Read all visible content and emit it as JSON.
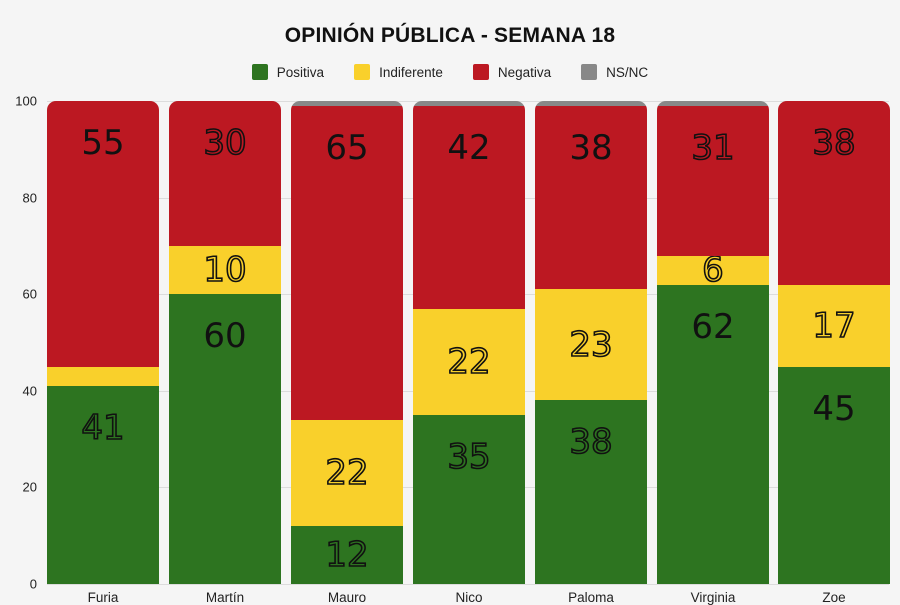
{
  "chart_data": {
    "type": "bar",
    "stacked": true,
    "title": "OPINIÓN PÚBLICA - SEMANA 18",
    "xlabel": "",
    "ylabel": "",
    "ylim": [
      0,
      100
    ],
    "yticks": [
      0,
      20,
      40,
      60,
      80,
      100
    ],
    "grid": true,
    "legend_position": "top",
    "categories": [
      "Furia",
      "Martín",
      "Mauro",
      "Nico",
      "Paloma",
      "Virginia",
      "Zoe"
    ],
    "series": [
      {
        "name": "Positiva",
        "color": "#2d7420",
        "values": [
          41,
          60,
          12,
          35,
          38,
          62,
          45
        ]
      },
      {
        "name": "Indiferente",
        "color": "#f9d02b",
        "values": [
          4,
          10,
          22,
          22,
          23,
          6,
          17
        ]
      },
      {
        "name": "Negativa",
        "color": "#bc1822",
        "values": [
          55,
          30,
          65,
          42,
          38,
          31,
          38
        ]
      },
      {
        "name": "NS/NC",
        "color": "#888888",
        "values": [
          0,
          0,
          1,
          1,
          1,
          1,
          0
        ]
      }
    ],
    "data_labels": {
      "Positiva": [
        "41",
        "60",
        "12",
        "35",
        "38",
        "62",
        "45"
      ],
      "Indiferente": [
        "",
        "10",
        "22",
        "22",
        "23",
        "6",
        "17"
      ],
      "Negativa": [
        "55",
        "30",
        "65",
        "42",
        "38",
        "31",
        "38"
      ],
      "NS/NC": [
        "",
        "",
        "",
        "",
        "",
        "",
        ""
      ]
    }
  },
  "title": "OPINIÓN PÚBLICA - SEMANA 18",
  "legend": [
    {
      "label": "Positiva",
      "color": "#2d7420"
    },
    {
      "label": "Indiferente",
      "color": "#f9d02b"
    },
    {
      "label": "Negativa",
      "color": "#bc1822"
    },
    {
      "label": "NS/NC",
      "color": "#888888"
    }
  ],
  "yticks": [
    "0",
    "20",
    "40",
    "60",
    "80",
    "100"
  ]
}
